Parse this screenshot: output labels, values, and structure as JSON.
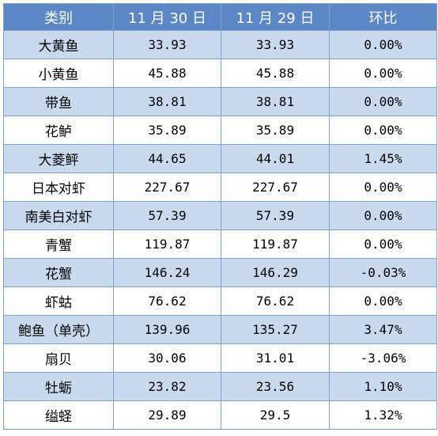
{
  "table": {
    "headers": [
      "类别",
      "11 月 30 日",
      "11 月 29 日",
      "环比"
    ],
    "rows": [
      [
        "大黄鱼",
        "33.93",
        "33.93",
        "0.00%"
      ],
      [
        "小黄鱼",
        "45.88",
        "45.88",
        "0.00%"
      ],
      [
        "带鱼",
        "38.81",
        "38.81",
        "0.00%"
      ],
      [
        "花鲈",
        "35.89",
        "35.89",
        "0.00%"
      ],
      [
        "大菱鲆",
        "44.65",
        "44.01",
        "1.45%"
      ],
      [
        "日本对虾",
        "227.67",
        "227.67",
        "0.00%"
      ],
      [
        "南美白对虾",
        "57.39",
        "57.39",
        "0.00%"
      ],
      [
        "青蟹",
        "119.87",
        "119.87",
        "0.00%"
      ],
      [
        "花蟹",
        "146.24",
        "146.29",
        "-0.03%"
      ],
      [
        "虾蛄",
        "76.62",
        "76.62",
        "0.00%"
      ],
      [
        "鲍鱼（单壳）",
        "139.96",
        "135.27",
        "3.47%"
      ],
      [
        "扇贝",
        "30.06",
        "31.01",
        "-3.06%"
      ],
      [
        "牡蛎",
        "23.82",
        "23.56",
        "1.10%"
      ],
      [
        "缢蛏",
        "29.89",
        "29.5",
        "1.32%"
      ]
    ]
  },
  "colors": {
    "header_bg": "#5b87c6",
    "stripe_bg": "#c9d9ee",
    "border": "#7ea1c9"
  }
}
